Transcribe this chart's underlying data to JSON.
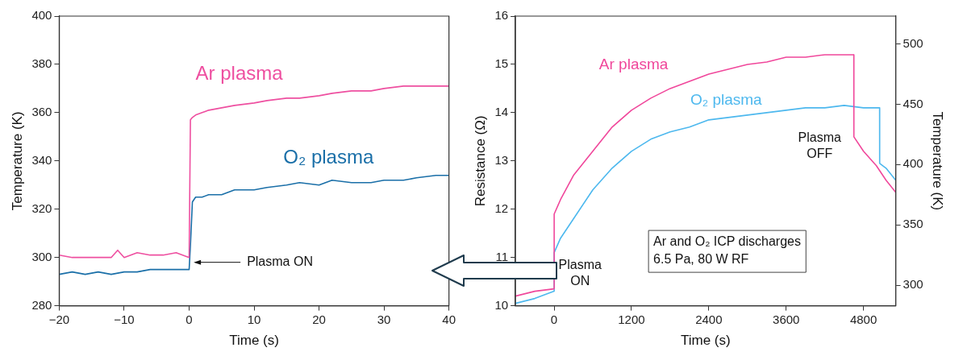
{
  "chart_data": [
    {
      "type": "line",
      "xlabel": "Time (s)",
      "ylabel": "Temperature (K)",
      "xlim": [
        -20,
        40
      ],
      "xticks": [
        {
          "value": -20,
          "label": "−20"
        },
        {
          "value": -10,
          "label": "−10"
        },
        0,
        10,
        20,
        30,
        40
      ],
      "ylim": [
        280,
        400
      ],
      "yticks": [
        280,
        300,
        320,
        340,
        360,
        380,
        400
      ],
      "marker": "none",
      "annotations": [
        "Plasma ON"
      ],
      "series": [
        {
          "name": "Ar plasma",
          "color": "#ee4fa0",
          "x": [
            -20,
            -18,
            -16,
            -14,
            -12,
            -11,
            -10,
            -8,
            -6,
            -4,
            -2,
            0,
            0.2,
            0.5,
            1,
            2,
            3,
            5,
            7,
            10,
            12,
            15,
            17,
            20,
            22,
            25,
            28,
            30,
            33,
            35,
            38,
            40
          ],
          "values": [
            301,
            300,
            300,
            300,
            300,
            303,
            300,
            302,
            301,
            301,
            302,
            300,
            357,
            358,
            359,
            360,
            361,
            362,
            363,
            364,
            365,
            366,
            366,
            367,
            368,
            369,
            369,
            370,
            371,
            371,
            371,
            371
          ]
        },
        {
          "name": "O₂ plasma",
          "color": "#1a6fa8",
          "x": [
            -20,
            -18,
            -16,
            -14,
            -12,
            -10,
            -8,
            -6,
            -4,
            -2,
            0,
            0.2,
            0.5,
            1,
            2,
            3,
            5,
            7,
            10,
            12,
            15,
            17,
            20,
            22,
            25,
            28,
            30,
            33,
            35,
            38,
            40
          ],
          "values": [
            293,
            294,
            293,
            294,
            293,
            294,
            294,
            295,
            295,
            295,
            295,
            305,
            323,
            325,
            325,
            326,
            326,
            328,
            328,
            329,
            330,
            331,
            330,
            332,
            331,
            331,
            332,
            332,
            333,
            334,
            334
          ]
        }
      ]
    },
    {
      "type": "line",
      "xlabel": "Time (s)",
      "ylabel": "Resistance (Ω)",
      "y2label": "Temperature (K)",
      "xlim": [
        -600,
        5300
      ],
      "xticks": [
        0,
        1200,
        2400,
        3600,
        4800
      ],
      "ylim": [
        10,
        16
      ],
      "yticks": [
        10,
        11,
        12,
        13,
        14,
        15,
        16
      ],
      "y2lim": [
        283,
        523
      ],
      "y2ticks": [
        300,
        350,
        400,
        450,
        500
      ],
      "marker": "none",
      "annotations": [
        "Plasma\nON",
        "Plasma\nOFF",
        "Ar and O₂ ICP discharges\n6.5 Pa, 80 W RF"
      ],
      "series": [
        {
          "name": "Ar plasma",
          "color": "#f0479b",
          "x": [
            -600,
            -300,
            0,
            1,
            100,
            300,
            600,
            900,
            1200,
            1500,
            1800,
            2100,
            2400,
            2700,
            3000,
            3300,
            3600,
            3900,
            4200,
            4500,
            4650,
            4651,
            4800,
            5000,
            5150,
            5300
          ],
          "values": [
            10.2,
            10.3,
            10.35,
            11.9,
            12.2,
            12.7,
            13.2,
            13.7,
            14.05,
            14.3,
            14.5,
            14.65,
            14.8,
            14.9,
            15.0,
            15.05,
            15.15,
            15.15,
            15.2,
            15.2,
            15.2,
            13.5,
            13.2,
            12.9,
            12.6,
            12.35
          ]
        },
        {
          "name": "O₂ plasma",
          "color": "#4db8ee",
          "x": [
            -600,
            -300,
            0,
            1,
            100,
            300,
            600,
            900,
            1200,
            1500,
            1800,
            2100,
            2400,
            2700,
            3000,
            3300,
            3600,
            3900,
            4200,
            4500,
            4800,
            5050,
            5051,
            5150,
            5300
          ],
          "values": [
            10.05,
            10.15,
            10.3,
            11.1,
            11.4,
            11.8,
            12.4,
            12.85,
            13.2,
            13.45,
            13.6,
            13.7,
            13.85,
            13.9,
            13.95,
            14.0,
            14.05,
            14.1,
            14.1,
            14.15,
            14.1,
            14.1,
            12.95,
            12.85,
            12.6
          ]
        }
      ]
    }
  ]
}
